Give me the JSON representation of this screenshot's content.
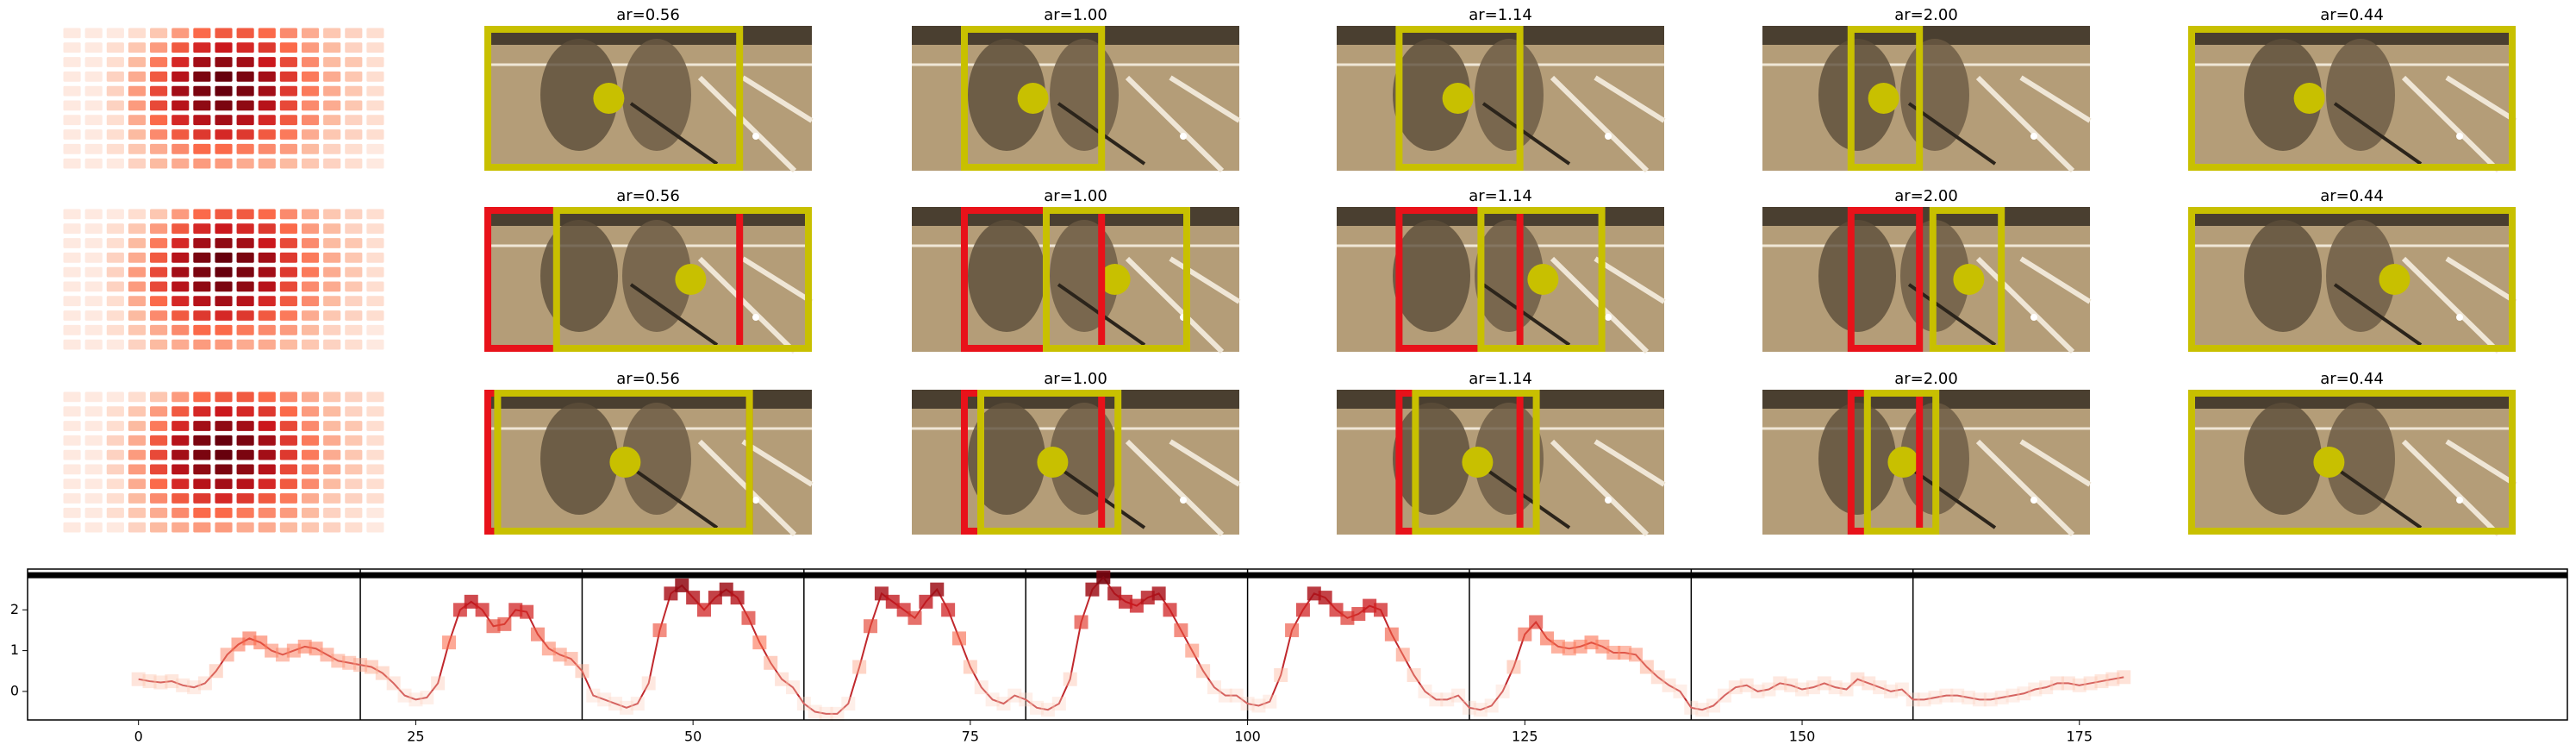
{
  "panels": {
    "heatmap": [
      [
        0.05,
        0.05,
        0.05,
        0.1,
        0.2,
        0.35,
        0.5,
        0.55,
        0.55,
        0.5,
        0.4,
        0.3,
        0.2,
        0.15,
        0.1
      ],
      [
        0.05,
        0.05,
        0.1,
        0.2,
        0.35,
        0.55,
        0.7,
        0.75,
        0.7,
        0.65,
        0.5,
        0.35,
        0.25,
        0.15,
        0.1
      ],
      [
        0.05,
        0.05,
        0.1,
        0.25,
        0.45,
        0.7,
        0.85,
        0.9,
        0.85,
        0.75,
        0.6,
        0.4,
        0.25,
        0.2,
        0.1
      ],
      [
        0.05,
        0.05,
        0.15,
        0.3,
        0.55,
        0.8,
        0.95,
        1.0,
        0.95,
        0.85,
        0.65,
        0.45,
        0.3,
        0.2,
        0.1
      ],
      [
        0.05,
        0.05,
        0.15,
        0.35,
        0.6,
        0.85,
        0.95,
        1.0,
        0.95,
        0.85,
        0.65,
        0.45,
        0.3,
        0.2,
        0.1
      ],
      [
        0.05,
        0.05,
        0.15,
        0.35,
        0.6,
        0.8,
        0.9,
        0.95,
        0.9,
        0.8,
        0.6,
        0.4,
        0.3,
        0.2,
        0.1
      ],
      [
        0.05,
        0.05,
        0.1,
        0.3,
        0.5,
        0.7,
        0.8,
        0.85,
        0.8,
        0.7,
        0.55,
        0.4,
        0.25,
        0.15,
        0.1
      ],
      [
        0.05,
        0.05,
        0.1,
        0.25,
        0.4,
        0.55,
        0.65,
        0.7,
        0.65,
        0.55,
        0.45,
        0.3,
        0.2,
        0.15,
        0.1
      ],
      [
        0.05,
        0.05,
        0.1,
        0.2,
        0.3,
        0.4,
        0.5,
        0.5,
        0.45,
        0.4,
        0.35,
        0.25,
        0.15,
        0.1,
        0.05
      ],
      [
        0.05,
        0.05,
        0.05,
        0.15,
        0.25,
        0.3,
        0.35,
        0.35,
        0.3,
        0.3,
        0.25,
        0.2,
        0.15,
        0.1,
        0.05
      ]
    ],
    "rows": [
      [
        "ar=0.56",
        "ar=1.00",
        "ar=1.14",
        "ar=2.00",
        "ar=0.44"
      ],
      [
        "ar=0.56",
        "ar=1.00",
        "ar=1.14",
        "ar=2.00",
        "ar=0.44"
      ],
      [
        "ar=0.56",
        "ar=1.00",
        "ar=1.14",
        "ar=2.00",
        "ar=0.44"
      ]
    ]
  },
  "chart_data": {
    "type": "line",
    "x": [
      0,
      1,
      2,
      3,
      4,
      5,
      6,
      7,
      8,
      9,
      10,
      11,
      12,
      13,
      14,
      15,
      16,
      17,
      18,
      19,
      20,
      21,
      22,
      23,
      24,
      25,
      26,
      27,
      28,
      29,
      30,
      31,
      32,
      33,
      34,
      35,
      36,
      37,
      38,
      39,
      40,
      41,
      42,
      43,
      44,
      45,
      46,
      47,
      48,
      49,
      50,
      51,
      52,
      53,
      54,
      55,
      56,
      57,
      58,
      59,
      60,
      61,
      62,
      63,
      64,
      65,
      66,
      67,
      68,
      69,
      70,
      71,
      72,
      73,
      74,
      75,
      76,
      77,
      78,
      79,
      80,
      81,
      82,
      83,
      84,
      85,
      86,
      87,
      88,
      89,
      90,
      91,
      92,
      93,
      94,
      95,
      96,
      97,
      98,
      99,
      100,
      101,
      102,
      103,
      104,
      105,
      106,
      107,
      108,
      109,
      110,
      111,
      112,
      113,
      114,
      115,
      116,
      117,
      118,
      119,
      120,
      121,
      122,
      123,
      124,
      125,
      126,
      127,
      128,
      129,
      130,
      131,
      132,
      133,
      134,
      135,
      136,
      137,
      138,
      139,
      140,
      141,
      142,
      143,
      144,
      145,
      146,
      147,
      148,
      149,
      150,
      151,
      152,
      153,
      154,
      155,
      156,
      157,
      158,
      159,
      160,
      161,
      162,
      163,
      164,
      165,
      166,
      167,
      168,
      169,
      170,
      171,
      172,
      173,
      174,
      175,
      176,
      177,
      178,
      179
    ],
    "values": [
      0.3,
      0.25,
      0.22,
      0.25,
      0.15,
      0.1,
      0.2,
      0.5,
      0.9,
      1.15,
      1.3,
      1.2,
      1.0,
      0.9,
      1.0,
      1.1,
      1.05,
      0.9,
      0.75,
      0.7,
      0.65,
      0.6,
      0.45,
      0.2,
      -0.1,
      -0.2,
      -0.15,
      0.2,
      1.2,
      2.0,
      2.2,
      2.0,
      1.6,
      1.65,
      2.0,
      1.95,
      1.4,
      1.05,
      0.9,
      0.8,
      0.5,
      -0.1,
      -0.2,
      -0.3,
      -0.4,
      -0.3,
      0.2,
      1.5,
      2.4,
      2.6,
      2.3,
      2.0,
      2.3,
      2.5,
      2.3,
      1.8,
      1.2,
      0.7,
      0.3,
      0.1,
      -0.3,
      -0.5,
      -0.55,
      -0.55,
      -0.3,
      0.6,
      1.6,
      2.4,
      2.2,
      2.0,
      1.8,
      2.2,
      2.5,
      2.0,
      1.3,
      0.6,
      0.1,
      -0.2,
      -0.3,
      -0.1,
      -0.2,
      -0.4,
      -0.45,
      -0.3,
      0.3,
      1.7,
      2.5,
      2.8,
      2.4,
      2.2,
      2.1,
      2.3,
      2.4,
      2.0,
      1.5,
      1.0,
      0.5,
      0.1,
      -0.1,
      -0.1,
      -0.3,
      -0.35,
      -0.25,
      0.4,
      1.5,
      2.0,
      2.4,
      2.3,
      2.0,
      1.8,
      1.9,
      2.1,
      2.0,
      1.4,
      0.9,
      0.4,
      0.0,
      -0.2,
      -0.2,
      -0.1,
      -0.4,
      -0.45,
      -0.35,
      0.0,
      0.6,
      1.4,
      1.7,
      1.3,
      1.1,
      1.05,
      1.1,
      1.2,
      1.1,
      0.95,
      0.95,
      0.9,
      0.6,
      0.35,
      0.15,
      0.0,
      -0.4,
      -0.45,
      -0.35,
      -0.1,
      0.1,
      0.15,
      0.0,
      0.05,
      0.2,
      0.15,
      0.05,
      0.1,
      0.2,
      0.1,
      0.05,
      0.3,
      0.2,
      0.1,
      0.0,
      0.05,
      -0.2,
      -0.2,
      -0.15,
      -0.1,
      -0.1,
      -0.15,
      -0.2,
      -0.2,
      -0.15,
      -0.1,
      -0.05,
      0.05,
      0.1,
      0.2,
      0.2,
      0.15,
      0.2,
      0.25,
      0.3,
      0.35
    ],
    "color": "#c0282d",
    "xlim": [
      -10,
      219
    ],
    "ylim": [
      -0.7,
      3.0
    ],
    "xticks": [
      0,
      25,
      50,
      75,
      100,
      125,
      150,
      175
    ],
    "yticks": [
      0,
      1,
      2
    ],
    "vlines": [
      20,
      40,
      60,
      80,
      100,
      120,
      140,
      160
    ],
    "hline": 2.85
  }
}
